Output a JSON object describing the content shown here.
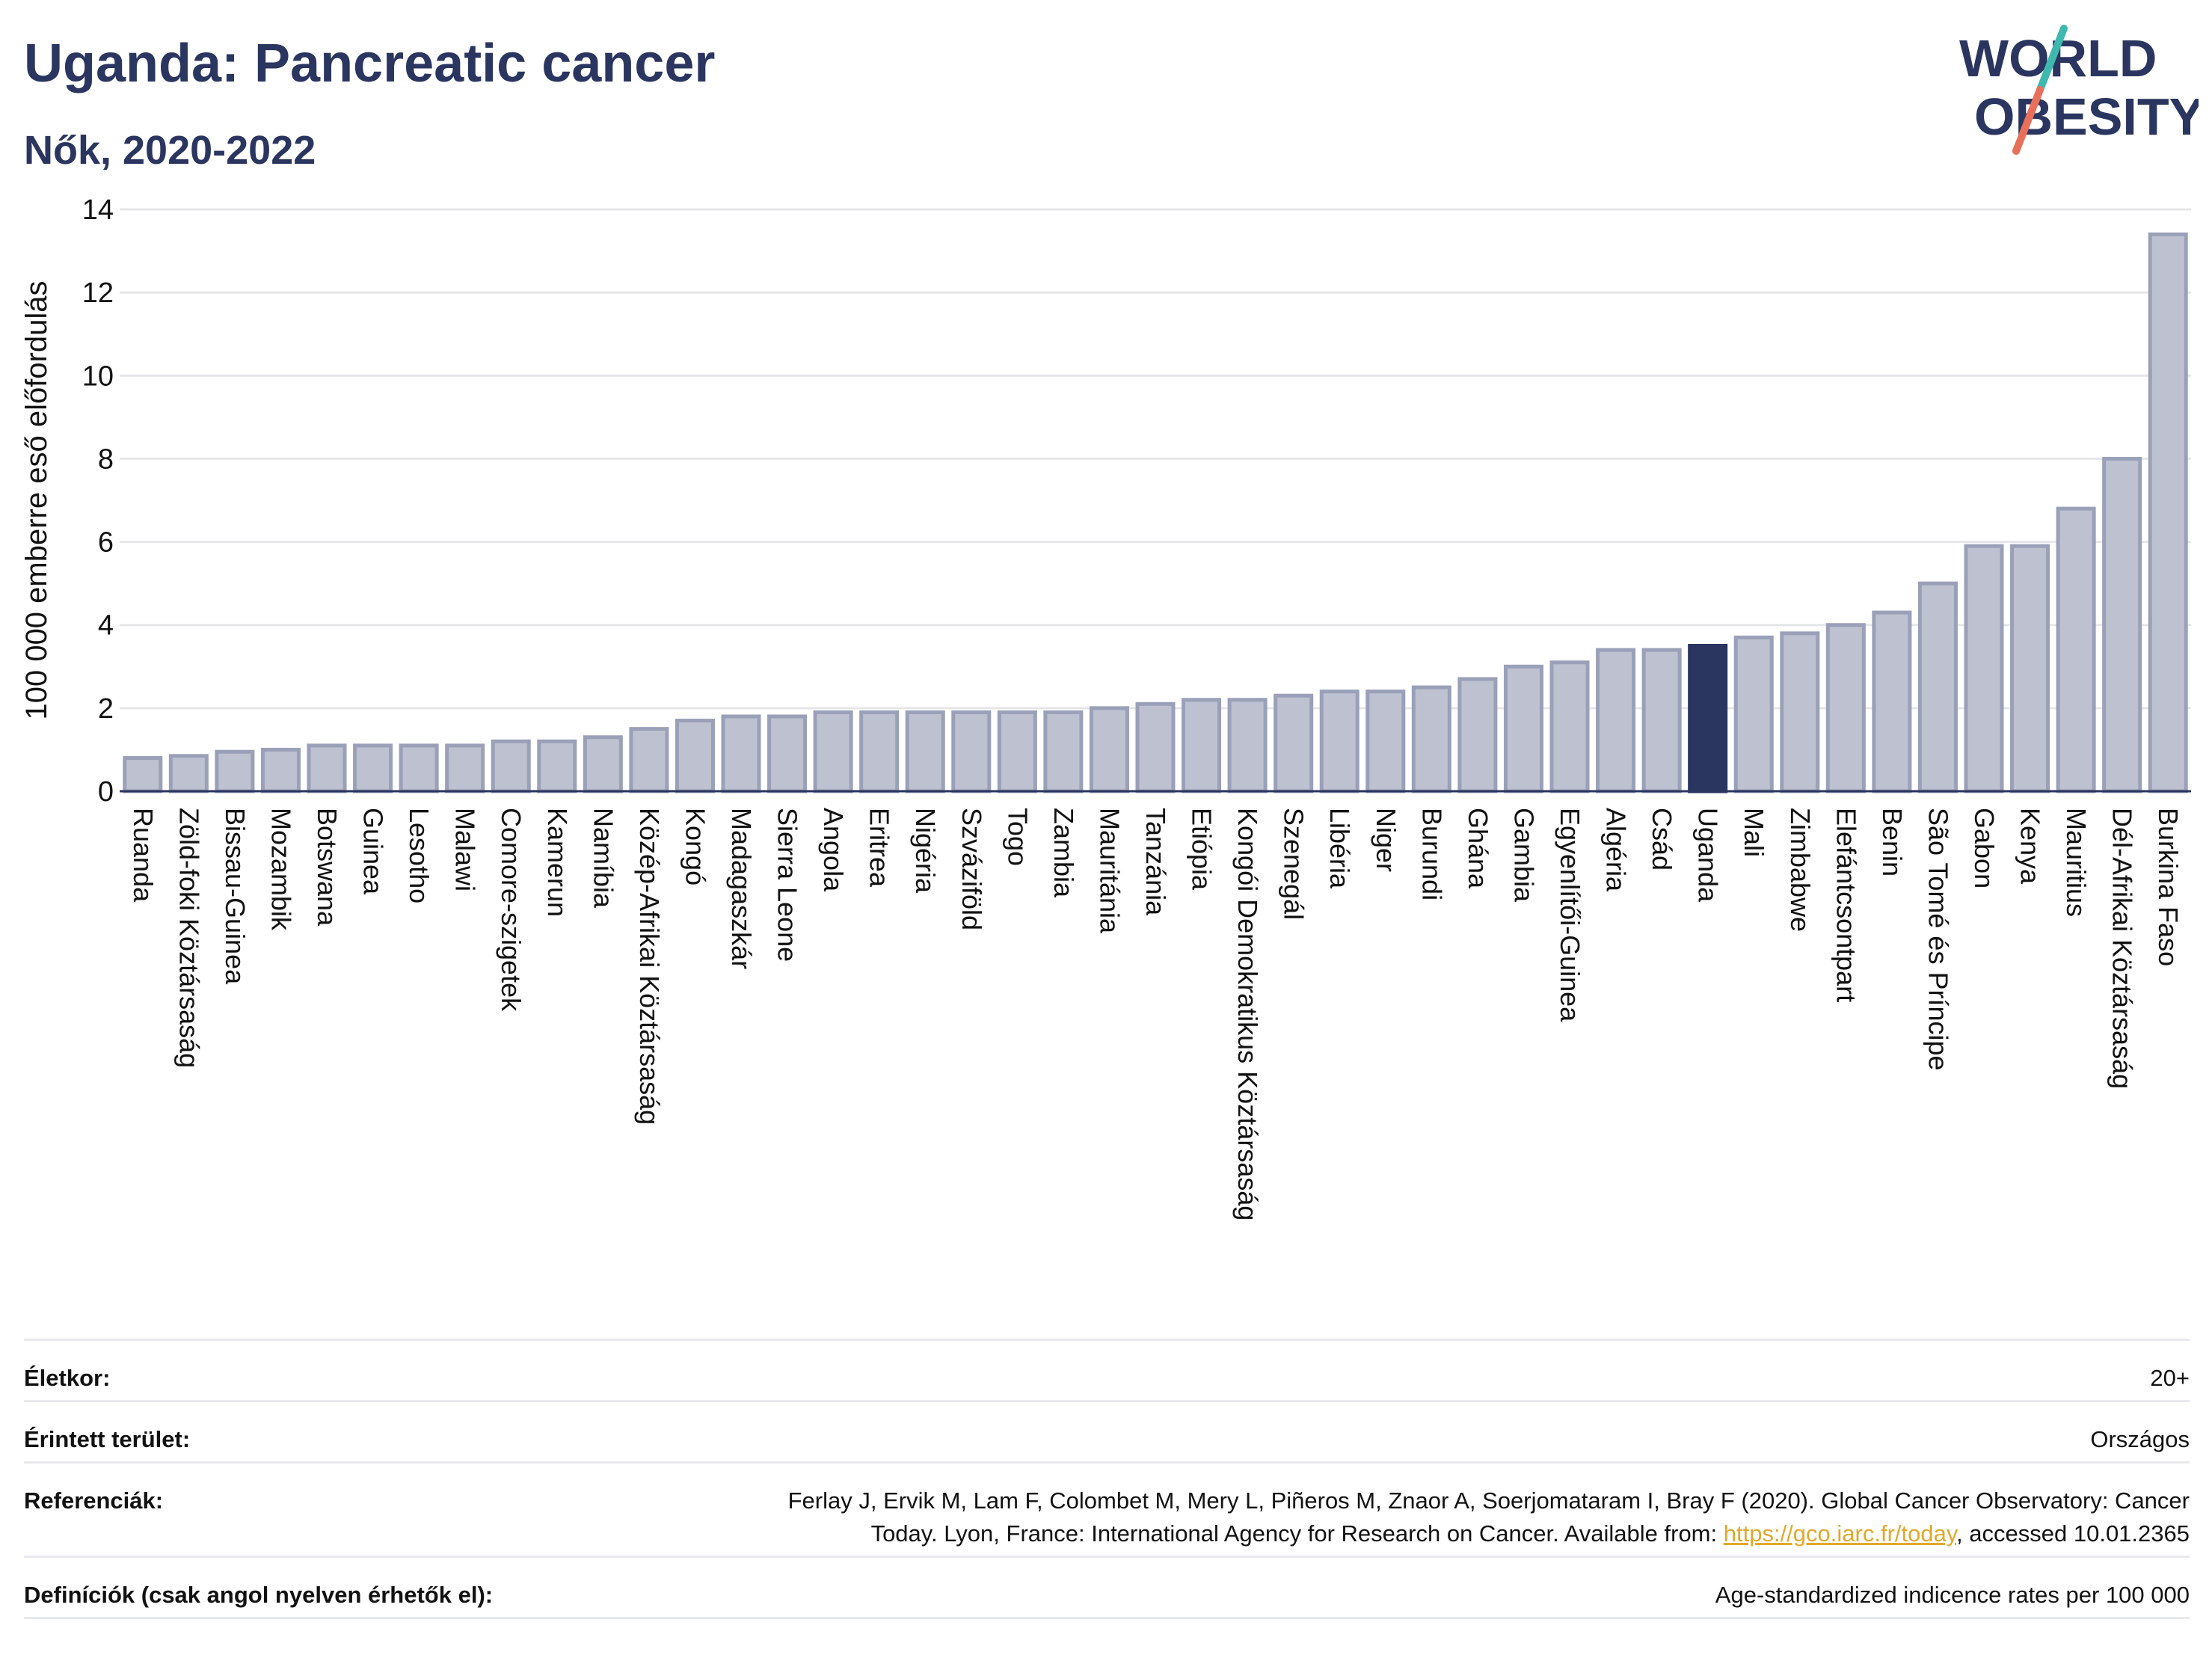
{
  "header": {
    "title": "Uganda: Pancreatic cancer",
    "subtitle": "Nők, 2020-2022"
  },
  "logo": {
    "line1": "WORLD",
    "line2": "OBESITY",
    "slash_top_color": "#3fb8af",
    "slash_bottom_color": "#e8705a"
  },
  "colors": {
    "bar_fill": "#bdc1d0",
    "bar_stroke": "#9aa0b8",
    "highlight_fill": "#2a3560",
    "text_dark": "#2a3560"
  },
  "chart_data": {
    "type": "bar",
    "title": "Uganda: Pancreatic cancer",
    "subtitle": "Nők, 2020-2022",
    "ylabel": "100 000 emberre eső előfordulás",
    "xlabel": "",
    "ylim": [
      0,
      14
    ],
    "yticks": [
      0,
      2,
      4,
      6,
      8,
      10,
      12,
      14
    ],
    "grid": true,
    "highlight": "Uganda",
    "categories": [
      "Ruanda",
      "Zöld-foki Köztársaság",
      "Bissau-Guinea",
      "Mozambik",
      "Botswana",
      "Guinea",
      "Lesotho",
      "Malawi",
      "Comore-szigetek",
      "Kamerun",
      "Namíbia",
      "Közép-Afrikai Köztársaság",
      "Kongó",
      "Madagaszkár",
      "Sierra Leone",
      "Angola",
      "Eritrea",
      "Nigéria",
      "Szváziföld",
      "Togo",
      "Zambia",
      "Mauritánia",
      "Tanzánia",
      "Etiópia",
      "Kongói Demokratikus Köztársaság",
      "Szenegál",
      "Libéria",
      "Niger",
      "Burundi",
      "Ghána",
      "Gambia",
      "Egyenlítői-Guinea",
      "Algéria",
      "Csád",
      "Uganda",
      "Mali",
      "Zimbabwe",
      "Elefántcsontpart",
      "Benin",
      "São Tomé és Príncipe",
      "Gabon",
      "Kenya",
      "Mauritius",
      "Dél-Afrikai Köztársaság",
      "Burkina Faso"
    ],
    "values": [
      0.8,
      0.85,
      0.95,
      1.0,
      1.1,
      1.1,
      1.1,
      1.1,
      1.2,
      1.2,
      1.3,
      1.5,
      1.7,
      1.8,
      1.8,
      1.9,
      1.9,
      1.9,
      1.9,
      1.9,
      1.9,
      2.0,
      2.1,
      2.2,
      2.2,
      2.3,
      2.4,
      2.4,
      2.5,
      2.7,
      3.0,
      3.1,
      3.4,
      3.4,
      3.5,
      3.7,
      3.8,
      4.0,
      4.3,
      5.0,
      5.9,
      5.9,
      6.8,
      8.0,
      13.4
    ]
  },
  "meta": {
    "age_label": "Életkor:",
    "age_value": "20+",
    "area_label": "Érintett terület:",
    "area_value": "Országos",
    "ref_label": "Referenciák:",
    "ref_text_1": "Ferlay J, Ervik M, Lam F, Colombet M, Mery L, Piñeros M, Znaor A, Soerjomataram I, Bray F (2020). Global Cancer Observatory: Cancer",
    "ref_text_2": "Today. Lyon, France: International Agency for Research on Cancer. Available from: ",
    "ref_link": "https://gco.iarc.fr/today",
    "ref_text_3": ", accessed 10.01.2365",
    "def_label": "Definíciók (csak angol nyelven érhetők el):",
    "def_value": "Age-standardized indicence rates per 100 000"
  }
}
